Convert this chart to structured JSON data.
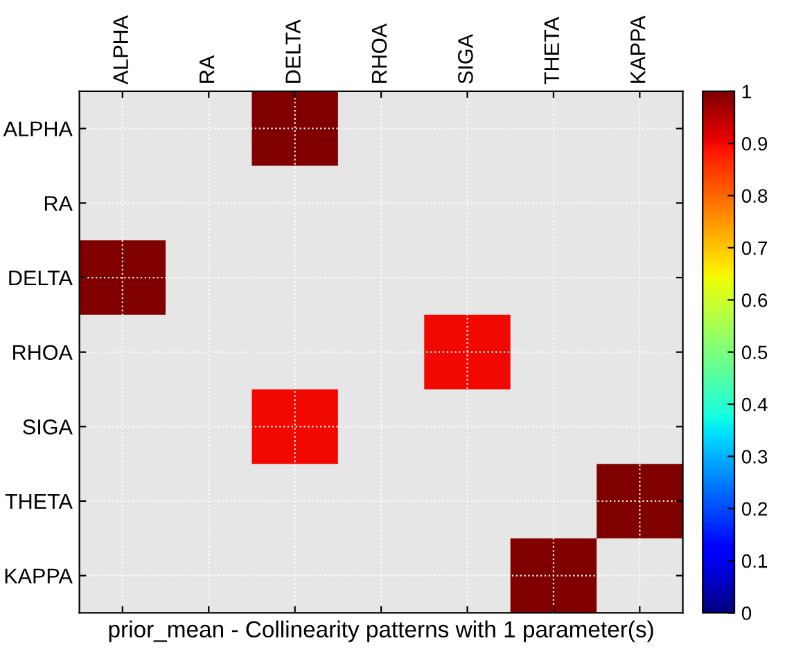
{
  "chart_data": {
    "type": "heatmap",
    "title": "prior_mean - Collinearity patterns with 1 parameter(s)",
    "categories": [
      "ALPHA",
      "RA",
      "DELTA",
      "RHOA",
      "SIGA",
      "THETA",
      "KAPPA"
    ],
    "y_categories": [
      "ALPHA",
      "RA",
      "DELTA",
      "RHOA",
      "SIGA",
      "THETA",
      "KAPPA"
    ],
    "cells": [
      [
        null,
        null,
        1,
        null,
        null,
        null,
        null
      ],
      [
        null,
        null,
        null,
        null,
        null,
        null,
        null
      ],
      [
        1,
        null,
        null,
        null,
        null,
        null,
        null
      ],
      [
        null,
        null,
        null,
        null,
        0.9,
        null,
        null
      ],
      [
        null,
        null,
        0.9,
        null,
        null,
        null,
        null
      ],
      [
        null,
        null,
        null,
        null,
        null,
        null,
        1
      ],
      [
        null,
        null,
        null,
        null,
        null,
        1,
        null
      ]
    ],
    "clim": [
      0,
      1
    ],
    "cticks": [
      0,
      0.1,
      0.2,
      0.3,
      0.4,
      0.5,
      0.6,
      0.7,
      0.8,
      0.9,
      1
    ],
    "grid": true
  }
}
